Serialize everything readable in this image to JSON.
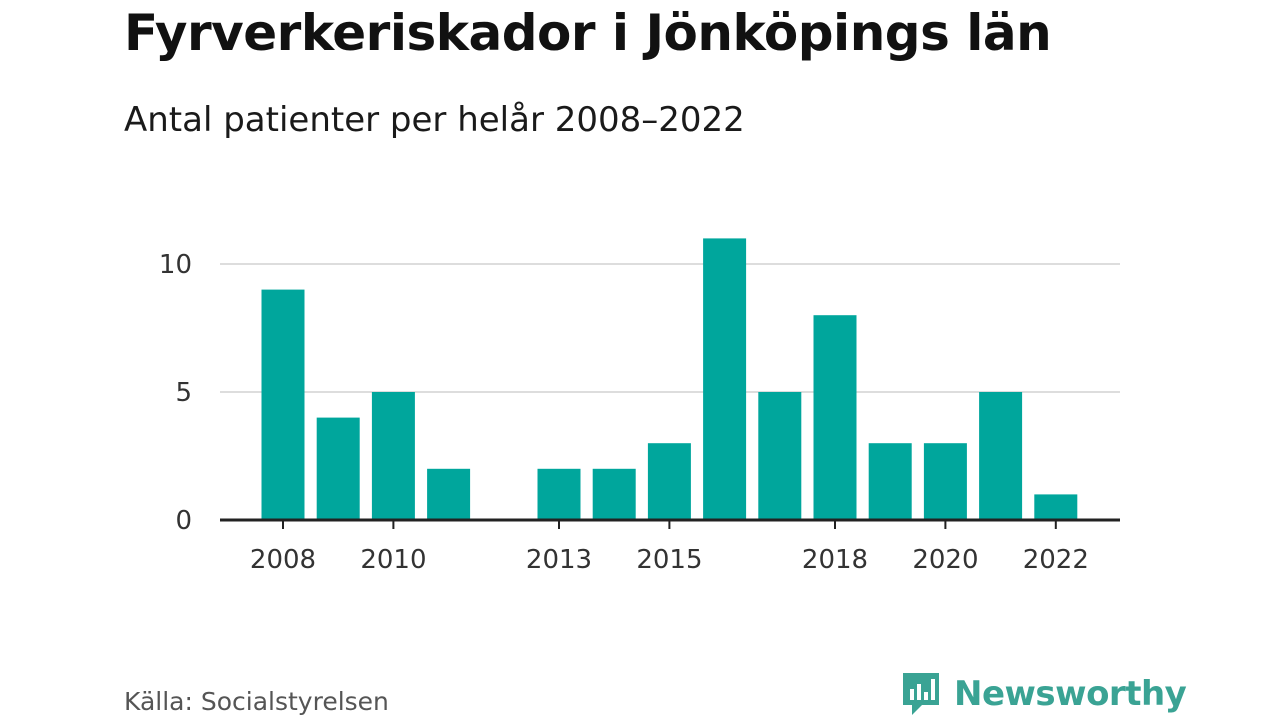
{
  "title": "Fyrverkeriskador i Jönköpings län",
  "subtitle": "Antal patienter per helår 2008–2022",
  "source": "Källa: Socialstyrelsen",
  "brand": {
    "name": "Newsworthy",
    "icon": "newsworthy-logo-icon",
    "color": "#3aa394"
  },
  "colors": {
    "bar": "#00a69c",
    "grid": "#dddddd",
    "axis": "#222222"
  },
  "chart_data": {
    "type": "bar",
    "title": "Fyrverkeriskador i Jönköpings län",
    "subtitle": "Antal patienter per helår 2008–2022",
    "xlabel": "",
    "ylabel": "",
    "categories": [
      2008,
      2009,
      2010,
      2011,
      2012,
      2013,
      2014,
      2015,
      2016,
      2017,
      2018,
      2019,
      2020,
      2021,
      2022
    ],
    "values": [
      9,
      4,
      5,
      2,
      0,
      2,
      2,
      3,
      11,
      5,
      8,
      3,
      3,
      5,
      1
    ],
    "ylim": [
      0,
      10
    ],
    "yticks": [
      0,
      5,
      10
    ],
    "xtick_labels": [
      "2008",
      "2010",
      "2013",
      "2015",
      "2018",
      "2020",
      "2022"
    ],
    "grid": "horizontal",
    "legend": "none"
  }
}
